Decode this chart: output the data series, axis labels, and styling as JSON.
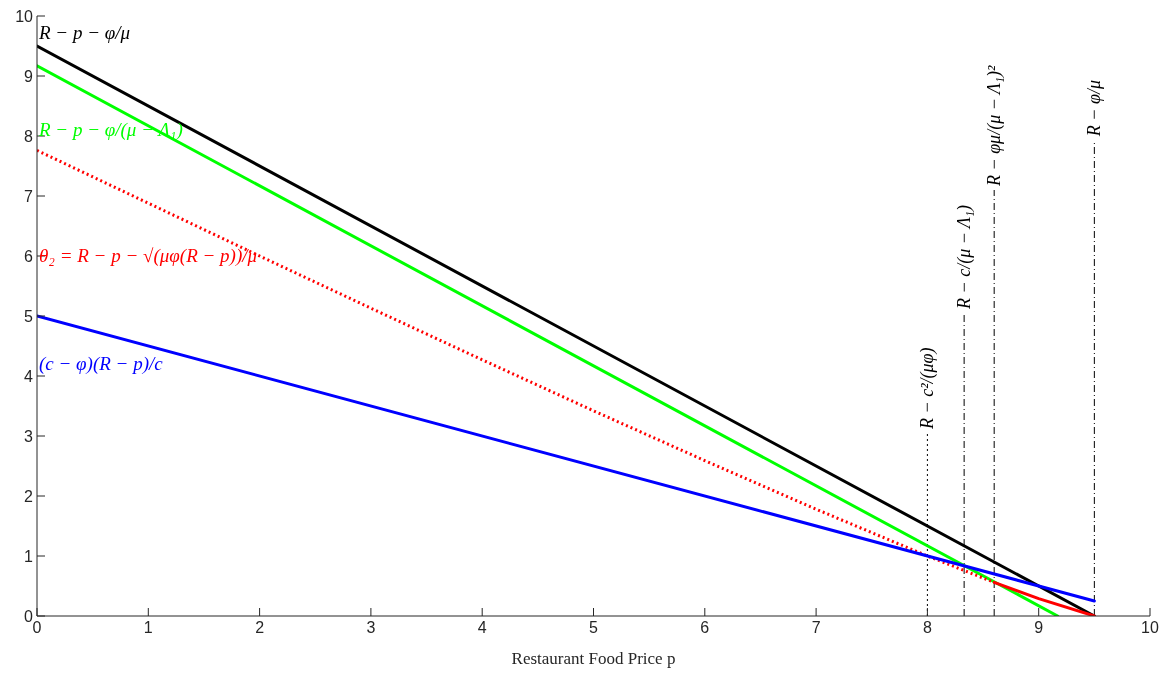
{
  "chart_data": {
    "type": "line",
    "xlabel": "Restaurant Food Price p",
    "xlim": [
      0,
      10
    ],
    "ylim": [
      0,
      10
    ],
    "xticks": [
      0,
      1,
      2,
      3,
      4,
      5,
      6,
      7,
      8,
      9,
      10
    ],
    "yticks": [
      0,
      1,
      2,
      3,
      4,
      5,
      6,
      7,
      8,
      9,
      10
    ],
    "grid": false,
    "legend": false,
    "marker": "none",
    "series": [
      {
        "name": "R − p − φ/μ",
        "color": "#000000",
        "x": [
          0,
          9.5
        ],
        "values": [
          9.5,
          0
        ],
        "line_style": "solid"
      },
      {
        "name": "R − p − φ/(μ − Λ₁)",
        "color": "#00ff00",
        "x": [
          0,
          9.17
        ],
        "values": [
          9.17,
          0
        ],
        "line_style": "solid"
      },
      {
        "name": "θ₂ = R − p − √(μφ(R − p))/μ",
        "color": "#ff0000",
        "x": [
          0,
          1,
          2,
          3,
          4,
          5,
          6,
          7,
          8,
          8.6
        ],
        "values": [
          7.76,
          6.88,
          6.0,
          5.13,
          4.27,
          3.42,
          2.59,
          1.78,
          1.0,
          0.56
        ],
        "line_style": "dotted"
      },
      {
        "color": "#ff0000",
        "x": [
          8.6,
          9,
          9.5
        ],
        "values": [
          0.56,
          0.29,
          0
        ],
        "line_style": "solid"
      },
      {
        "name": "(c − φ)(R − p)/c",
        "color": "#0000ff",
        "x": [
          0,
          9.5
        ],
        "values": [
          5,
          0.25
        ],
        "line_style": "solid"
      }
    ],
    "ref_lines": [
      {
        "axis": "x",
        "value": 8,
        "label": "R − c²/(μφ)",
        "color": "#000000",
        "line_style": "dotted"
      },
      {
        "axis": "x",
        "value": 8.33,
        "label": "R − c/(μ − Λ₁)",
        "color": "#000000",
        "line_style": "dashdot"
      },
      {
        "axis": "x",
        "value": 8.6,
        "label": "R − φμ/(μ − Λ₁)²",
        "color": "#000000",
        "line_style": "dashdot"
      },
      {
        "axis": "x",
        "value": 9.5,
        "label": "R − φ/μ",
        "color": "#000000",
        "line_style": "dashdot"
      }
    ]
  }
}
